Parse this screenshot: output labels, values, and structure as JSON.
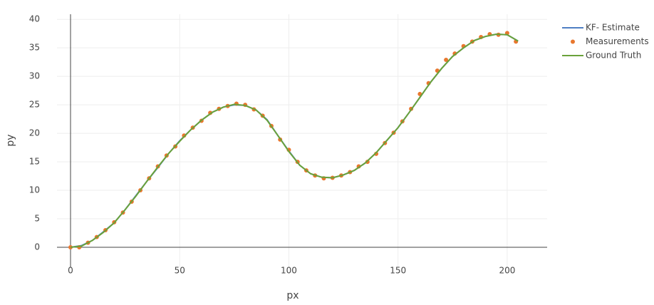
{
  "chart_data": {
    "type": "line",
    "xlabel": "px",
    "ylabel": "py",
    "xlim": [
      -6.2,
      218.3
    ],
    "ylim": [
      -3.5,
      40.9
    ],
    "xticks": [
      0,
      50,
      100,
      150,
      200
    ],
    "yticks": [
      0,
      5,
      10,
      15,
      20,
      25,
      30,
      35,
      40
    ],
    "grid": true,
    "legend": "top-right",
    "series": [
      {
        "name": "KF- Estimate",
        "color": "#4f7fc4",
        "mode": "lines",
        "x": [
          0,
          5,
          10,
          15,
          20,
          25,
          30,
          35,
          40,
          45,
          50,
          55,
          60,
          65,
          70,
          75,
          80,
          85,
          90,
          95,
          100,
          105,
          110,
          115,
          120,
          125,
          130,
          135,
          140,
          145,
          150,
          155,
          160,
          165,
          170,
          175,
          180,
          185,
          190,
          195,
          200,
          205
        ],
        "values": [
          0.0,
          0.3,
          1.2,
          2.7,
          4.3,
          6.6,
          9.1,
          11.6,
          14.0,
          16.5,
          18.7,
          20.6,
          22.3,
          23.7,
          24.6,
          25.0,
          24.9,
          24.1,
          22.4,
          19.6,
          16.9,
          14.4,
          12.9,
          12.3,
          12.2,
          12.7,
          13.5,
          14.8,
          16.6,
          18.8,
          21.0,
          23.6,
          26.3,
          29.0,
          31.4,
          33.5,
          35.0,
          36.3,
          37.0,
          37.4,
          37.3,
          36.2
        ]
      },
      {
        "name": "Measurements",
        "color": "#e8772e",
        "mode": "markers",
        "x": [
          0,
          4,
          8,
          12,
          16,
          20,
          24,
          28,
          32,
          36,
          40,
          44,
          48,
          52,
          56,
          60,
          64,
          68,
          72,
          76,
          80,
          84,
          88,
          92,
          96,
          100,
          104,
          108,
          112,
          116,
          120,
          124,
          128,
          132,
          136,
          140,
          144,
          148,
          152,
          156,
          160,
          164,
          168,
          172,
          176,
          180,
          184,
          188,
          192,
          196,
          200,
          204
        ],
        "values": [
          0.0,
          0.0,
          0.8,
          1.8,
          3.0,
          4.4,
          6.1,
          8.0,
          10.0,
          12.1,
          14.2,
          16.1,
          17.7,
          19.6,
          21.0,
          22.2,
          23.6,
          24.3,
          24.8,
          25.2,
          25.0,
          24.2,
          23.1,
          21.3,
          18.9,
          17.1,
          15.0,
          13.5,
          12.6,
          12.1,
          12.2,
          12.6,
          13.2,
          14.2,
          15.0,
          16.4,
          18.3,
          20.1,
          22.1,
          24.3,
          26.9,
          28.8,
          31.0,
          32.9,
          34.0,
          35.3,
          36.1,
          36.9,
          37.4,
          37.3,
          37.6,
          36.1
        ]
      },
      {
        "name": "Ground Truth",
        "color": "#6aa23a",
        "mode": "lines",
        "x": [
          0,
          5,
          10,
          15,
          20,
          25,
          30,
          35,
          40,
          45,
          50,
          55,
          60,
          65,
          70,
          75,
          80,
          85,
          90,
          95,
          100,
          105,
          110,
          115,
          120,
          125,
          130,
          135,
          140,
          145,
          150,
          155,
          160,
          165,
          170,
          175,
          180,
          185,
          190,
          195,
          200,
          205
        ],
        "values": [
          0.0,
          0.2,
          1.2,
          2.6,
          4.3,
          6.6,
          9.0,
          11.6,
          14.1,
          16.5,
          18.6,
          20.6,
          22.3,
          23.7,
          24.6,
          25.1,
          24.9,
          24.1,
          22.3,
          19.6,
          16.8,
          14.4,
          12.9,
          12.3,
          12.2,
          12.7,
          13.5,
          14.8,
          16.6,
          18.8,
          21.0,
          23.6,
          26.3,
          29.0,
          31.4,
          33.5,
          35.0,
          36.3,
          37.0,
          37.4,
          37.3,
          36.2
        ]
      }
    ]
  }
}
